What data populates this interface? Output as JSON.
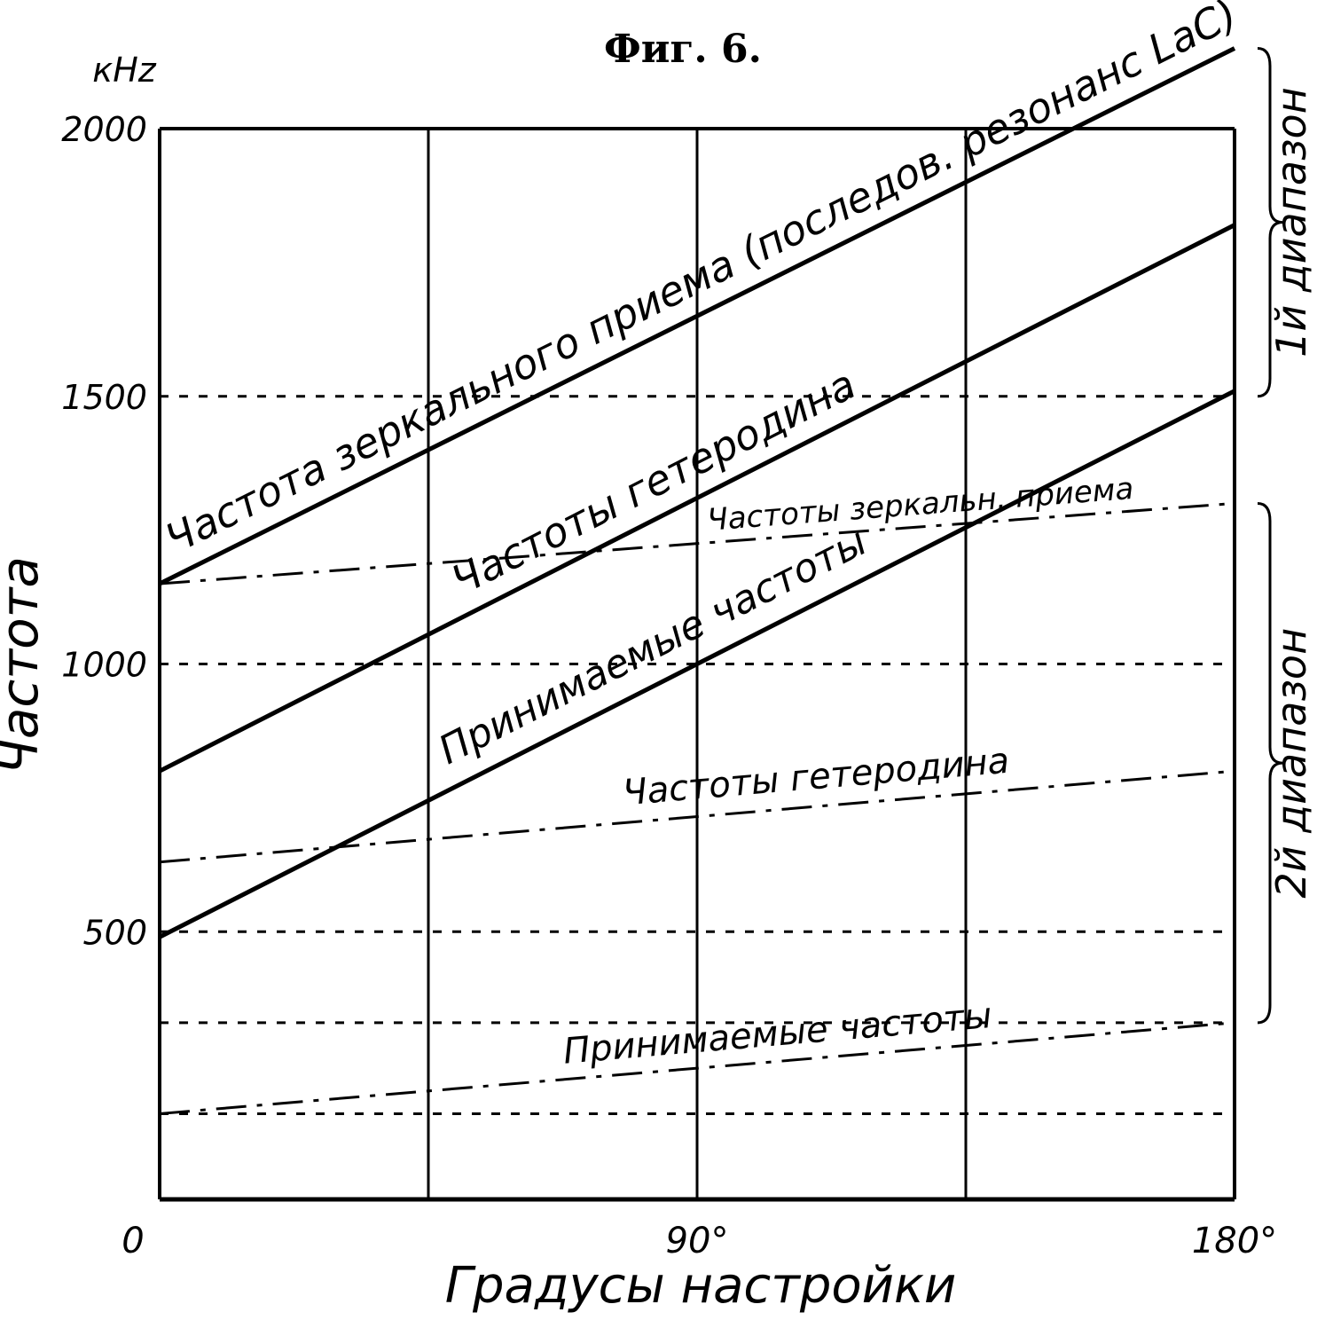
{
  "figure_label": "Фиг. 6.",
  "chart_data": {
    "type": "line",
    "y_unit": "кHz",
    "ylabel": "Частота",
    "xlabel": "Градусы настройки",
    "xlim": [
      0,
      180
    ],
    "ylim": [
      0,
      2000
    ],
    "x_tick_labels": [
      {
        "x": 0,
        "label": "0"
      },
      {
        "x": 90,
        "label": "90°"
      },
      {
        "x": 180,
        "label": "180°"
      }
    ],
    "y_tick_labels": [
      {
        "y": 500,
        "label": "500"
      },
      {
        "y": 1000,
        "label": "1000"
      },
      {
        "y": 1500,
        "label": "1500"
      },
      {
        "y": 2000,
        "label": "2000"
      }
    ],
    "vertical_gridlines_x": [
      0,
      45,
      90,
      135,
      180
    ],
    "horizontal_dashed_y": [
      160,
      330,
      500,
      1000,
      1500
    ],
    "series": [
      {
        "name": "Частота зеркального приема (последов. резонанс LaC)",
        "style": "solid",
        "range": "1й диапазон",
        "x": [
          0,
          180
        ],
        "y": [
          1150,
          2150
        ]
      },
      {
        "name": "Частоты гетеродина",
        "style": "solid",
        "range": "1й диапазон",
        "x": [
          0,
          180
        ],
        "y": [
          800,
          1820
        ]
      },
      {
        "name": "Принимаемые частоты",
        "style": "solid",
        "range": "1й диапазон",
        "x": [
          0,
          180
        ],
        "y": [
          490,
          1510
        ]
      },
      {
        "name": "Частоты зеркальн. приема",
        "style": "dashdot",
        "range": "2й диапазон",
        "x": [
          0,
          180
        ],
        "y": [
          1150,
          1300
        ]
      },
      {
        "name": "Частоты гетеродина",
        "style": "dashdot",
        "range": "2й диапазон",
        "x": [
          0,
          180
        ],
        "y": [
          630,
          800
        ]
      },
      {
        "name": "Принимаемые частоты",
        "style": "dashdot",
        "range": "2й диапазон",
        "x": [
          0,
          180
        ],
        "y": [
          160,
          330
        ]
      }
    ],
    "brackets": [
      {
        "label": "1й диапазон",
        "y_from": 1500,
        "y_to": 2150
      },
      {
        "label": "2й диапазон",
        "y_from": 330,
        "y_to": 1300
      }
    ]
  }
}
